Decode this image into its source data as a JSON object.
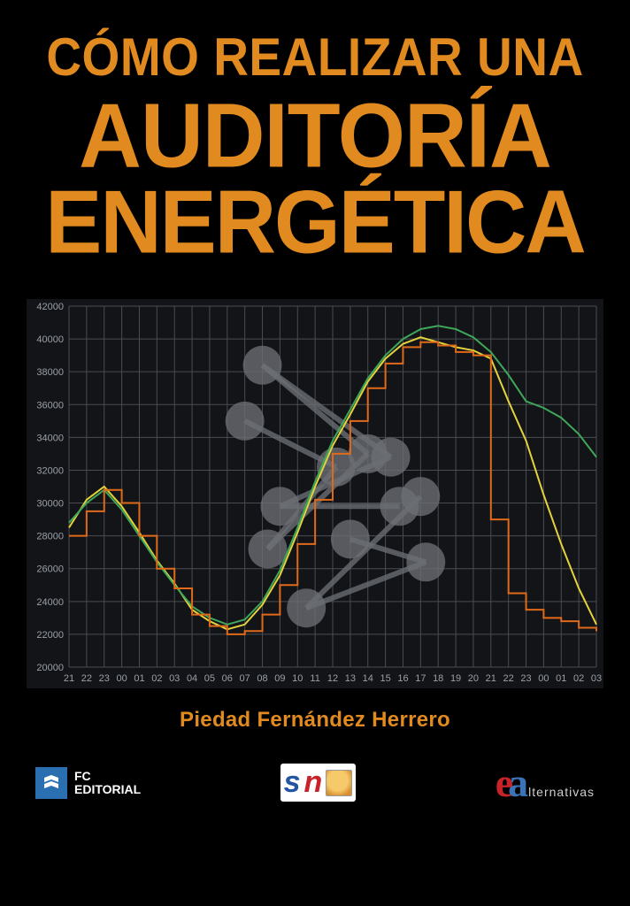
{
  "title": {
    "line1": "CÓMO REALIZAR UNA",
    "line2": "AUDITORÍA",
    "line3": "ENERGÉTICA",
    "color": "#e08a1f"
  },
  "author": "Piedad Fernández Herrero",
  "chart": {
    "type": "line",
    "background_color": "#121418",
    "grid_color": "#4a4c52",
    "axis_label_color": "#9aa0a8",
    "axis_fontsize": 11,
    "ylim": [
      20000,
      42000
    ],
    "ytick_step": 2000,
    "yticks": [
      20000,
      22000,
      24000,
      26000,
      28000,
      30000,
      32000,
      34000,
      36000,
      38000,
      40000,
      42000
    ],
    "xticks": [
      "21",
      "22",
      "23",
      "00",
      "01",
      "02",
      "03",
      "04",
      "05",
      "06",
      "07",
      "08",
      "09",
      "10",
      "11",
      "12",
      "13",
      "14",
      "15",
      "16",
      "17",
      "18",
      "19",
      "20",
      "21",
      "22",
      "23",
      "00",
      "01",
      "02",
      "03"
    ],
    "series": [
      {
        "name": "yellow",
        "color": "#e4d23b",
        "width": 2,
        "values": [
          28500,
          30200,
          31000,
          29800,
          28200,
          26500,
          25100,
          23500,
          22800,
          22300,
          22600,
          23800,
          25600,
          28200,
          31000,
          33500,
          35400,
          37400,
          38800,
          39700,
          40100,
          39800,
          39500,
          39300,
          38800,
          36200,
          33800,
          30500,
          27500,
          24800,
          22600
        ]
      },
      {
        "name": "green",
        "color": "#3fa65a",
        "width": 2,
        "values": [
          28800,
          30000,
          30800,
          29600,
          28000,
          26400,
          25000,
          23700,
          23000,
          22600,
          22900,
          24000,
          25900,
          28500,
          31300,
          33800,
          35700,
          37600,
          39000,
          40000,
          40600,
          40800,
          40600,
          40100,
          39200,
          37800,
          36200,
          35800,
          35200,
          34200,
          32800
        ]
      },
      {
        "name": "orange_step",
        "color": "#e06a1a",
        "width": 2,
        "step": true,
        "values": [
          28000,
          29500,
          30800,
          30000,
          28000,
          26000,
          24800,
          23200,
          22500,
          22000,
          22200,
          23200,
          25000,
          27500,
          30200,
          33000,
          35000,
          37000,
          38500,
          39500,
          39800,
          39600,
          39200,
          39000,
          29000,
          24500,
          23500,
          23000,
          22800,
          22400,
          22200
        ]
      }
    ],
    "bubbles": {
      "color": "#6b6e73",
      "opacity": 0.78,
      "radius": 22,
      "line_width": 6,
      "nodes": [
        {
          "x": 10,
          "y": 35000
        },
        {
          "x": 11,
          "y": 38400
        },
        {
          "x": 11.3,
          "y": 27200
        },
        {
          "x": 12,
          "y": 29800
        },
        {
          "x": 13.5,
          "y": 23600
        },
        {
          "x": 15.2,
          "y": 32200
        },
        {
          "x": 16,
          "y": 27800
        },
        {
          "x": 17,
          "y": 33000
        },
        {
          "x": 18.3,
          "y": 32800
        },
        {
          "x": 18.8,
          "y": 29800
        },
        {
          "x": 20,
          "y": 30400
        },
        {
          "x": 20.3,
          "y": 26400
        }
      ],
      "edges": [
        [
          0,
          5
        ],
        [
          1,
          7
        ],
        [
          1,
          8
        ],
        [
          2,
          7
        ],
        [
          2,
          5
        ],
        [
          3,
          9
        ],
        [
          3,
          8
        ],
        [
          4,
          10
        ],
        [
          4,
          11
        ],
        [
          6,
          11
        ]
      ]
    }
  },
  "logos": {
    "fc": {
      "line1": "FC",
      "line2": "EDITORIAL"
    },
    "sn": {
      "s": "s",
      "n": "n"
    },
    "ea": {
      "e": "e",
      "a": "a",
      "rest": "lternativas"
    }
  }
}
